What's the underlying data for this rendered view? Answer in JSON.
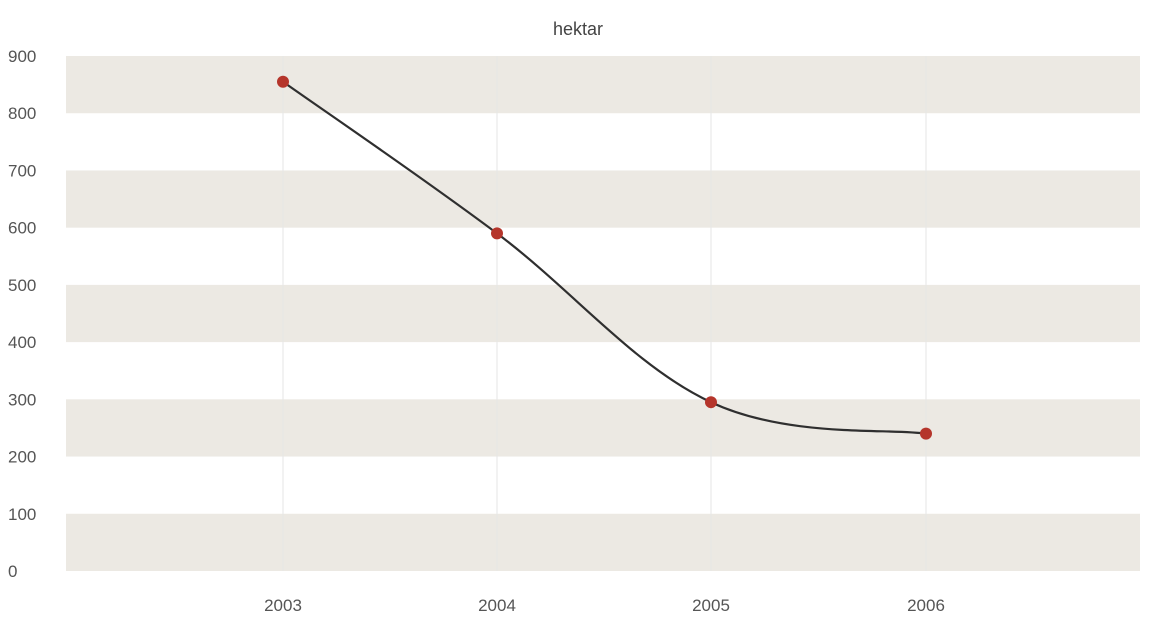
{
  "chart_data": {
    "type": "line",
    "title": "hektar",
    "xlabel": "",
    "ylabel": "",
    "categories": [
      "2003",
      "2004",
      "2005",
      "2006"
    ],
    "series": [
      {
        "values": [
          855,
          590,
          295,
          240
        ]
      }
    ],
    "ylim": [
      0,
      900
    ],
    "yticks": [
      0,
      100,
      200,
      300,
      400,
      500,
      600,
      700,
      800,
      900
    ],
    "grid": "horizontal alternating bands",
    "legend": "none",
    "colors": {
      "band": "#ece9e3",
      "line": "#2f2f2f",
      "marker": "#b5352b",
      "vgrid": "#e6e6e6",
      "text": "#555555"
    }
  }
}
